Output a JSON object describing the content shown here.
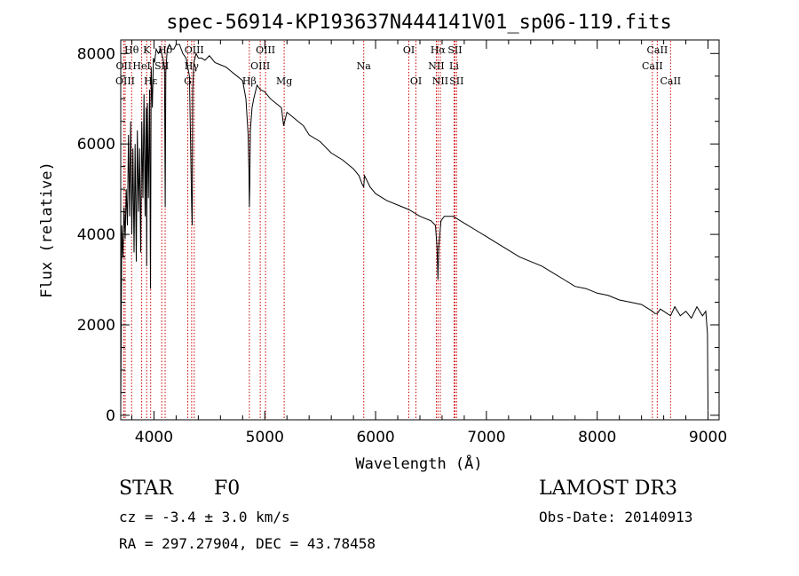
{
  "chart_data": {
    "type": "line",
    "title": "spec-56914-KP193637N444141V01_sp06-119.fits",
    "xlabel": "Wavelength (Å)",
    "ylabel": "Flux (relative)",
    "xlim": [
      3700,
      9100
    ],
    "ylim": [
      -100,
      8300
    ],
    "xticks": [
      4000,
      5000,
      6000,
      7000,
      8000,
      9000
    ],
    "yticks": [
      0,
      2000,
      4000,
      6000,
      8000
    ],
    "series": [
      {
        "name": "flux",
        "x": [
          3700,
          3710,
          3720,
          3730,
          3740,
          3750,
          3760,
          3770,
          3780,
          3790,
          3800,
          3810,
          3820,
          3830,
          3840,
          3850,
          3860,
          3870,
          3880,
          3890,
          3900,
          3910,
          3920,
          3930,
          3934,
          3940,
          3950,
          3960,
          3968,
          3975,
          3985,
          3995,
          4005,
          4020,
          4040,
          4060,
          4080,
          4095,
          4101,
          4107,
          4120,
          4140,
          4160,
          4180,
          4200,
          4230,
          4260,
          4290,
          4320,
          4340,
          4345,
          4350,
          4360,
          4380,
          4400,
          4430,
          4460,
          4500,
          4550,
          4600,
          4650,
          4700,
          4750,
          4800,
          4830,
          4850,
          4858,
          4861,
          4864,
          4870,
          4885,
          4900,
          4930,
          4960,
          5000,
          5050,
          5100,
          5150,
          5170,
          5180,
          5200,
          5250,
          5300,
          5350,
          5400,
          5500,
          5600,
          5700,
          5800,
          5850,
          5880,
          5893,
          5900,
          5950,
          6000,
          6100,
          6200,
          6300,
          6400,
          6500,
          6540,
          6555,
          6563,
          6570,
          6590,
          6620,
          6700,
          6800,
          6900,
          7000,
          7100,
          7200,
          7300,
          7400,
          7500,
          7600,
          7700,
          7800,
          7900,
          8000,
          8100,
          8200,
          8300,
          8400,
          8498,
          8520,
          8542,
          8570,
          8600,
          8662,
          8700,
          8750,
          8800,
          8850,
          8900,
          8950,
          8980,
          8995,
          9000
        ],
        "y": [
          100,
          4200,
          3500,
          4600,
          3900,
          5000,
          4200,
          6200,
          4400,
          6500,
          4000,
          5900,
          3600,
          6000,
          3400,
          6300,
          4500,
          5900,
          3600,
          6500,
          4800,
          7100,
          4400,
          6800,
          3300,
          6900,
          4800,
          7200,
          2800,
          7700,
          6800,
          7900,
          7800,
          8100,
          8000,
          8100,
          7900,
          7700,
          4600,
          7600,
          8100,
          8200,
          8100,
          8100,
          8200,
          8200,
          8000,
          7900,
          7500,
          4600,
          4200,
          7200,
          7800,
          8000,
          7900,
          7900,
          7850,
          7950,
          7800,
          7750,
          7700,
          7600,
          7500,
          7400,
          7000,
          6200,
          5300,
          4600,
          5000,
          6300,
          6800,
          7000,
          7300,
          7200,
          7150,
          7000,
          6900,
          6800,
          6400,
          6500,
          6700,
          6600,
          6500,
          6400,
          6200,
          6050,
          5800,
          5650,
          5450,
          5300,
          5100,
          5050,
          5300,
          5050,
          4900,
          4750,
          4650,
          4550,
          4400,
          4300,
          4200,
          3700,
          3000,
          3700,
          4300,
          4400,
          4400,
          4250,
          4100,
          3950,
          3800,
          3650,
          3500,
          3400,
          3300,
          3150,
          3000,
          2850,
          2800,
          2700,
          2650,
          2550,
          2500,
          2450,
          2300,
          2250,
          2250,
          2350,
          2300,
          2200,
          2400,
          2200,
          2300,
          2150,
          2400,
          2200,
          2300,
          1800,
          100
        ]
      }
    ],
    "lines": [
      {
        "label": "Hθ",
        "x": 3798,
        "row": 1
      },
      {
        "label": "OII",
        "x": 3727,
        "row": 2
      },
      {
        "label": "OIII",
        "x": 3740,
        "row": 3
      },
      {
        "label": "K",
        "x": 3934,
        "row": 1
      },
      {
        "label": "HeI",
        "x": 3889,
        "row": 2
      },
      {
        "label": "Hε",
        "x": 3970,
        "row": 3
      },
      {
        "label": "Hδ",
        "x": 4101,
        "row": 1
      },
      {
        "label": "SII",
        "x": 4070,
        "row": 2
      },
      {
        "label": "OIII",
        "x": 4363,
        "row": 1
      },
      {
        "label": "Hγ",
        "x": 4340,
        "row": 2
      },
      {
        "label": "G",
        "x": 4305,
        "row": 3
      },
      {
        "label": "OIII",
        "x": 5007,
        "row": 1
      },
      {
        "label": "OIII",
        "x": 4959,
        "row": 2
      },
      {
        "label": "Hβ",
        "x": 4861,
        "row": 3
      },
      {
        "label": "Mg",
        "x": 5175,
        "row": 3
      },
      {
        "label": "Na",
        "x": 5893,
        "row": 2
      },
      {
        "label": "OI",
        "x": 6300,
        "row": 1
      },
      {
        "label": "OI",
        "x": 6364,
        "row": 3
      },
      {
        "label": "Hα",
        "x": 6563,
        "row": 1
      },
      {
        "label": "SII",
        "x": 6716,
        "row": 1
      },
      {
        "label": "NII",
        "x": 6548,
        "row": 2
      },
      {
        "label": "Li",
        "x": 6708,
        "row": 2
      },
      {
        "label": "NII",
        "x": 6584,
        "row": 3
      },
      {
        "label": "SII",
        "x": 6731,
        "row": 3
      },
      {
        "label": "CaII",
        "x": 8542,
        "row": 1
      },
      {
        "label": "CaII",
        "x": 8498,
        "row": 2
      },
      {
        "label": "CaII",
        "x": 8662,
        "row": 3
      }
    ]
  },
  "info": {
    "object_class": "STAR",
    "subclass": "F0",
    "survey": "LAMOST DR3",
    "redshift": "cz = -3.4 ± 3.0 km/s",
    "obs_date": "Obs-Date: 20140913",
    "coords": "RA = 297.27904, DEC =  43.78458"
  },
  "colors": {
    "spectrum": "#000000",
    "line_marker": "#cc0000",
    "axis": "#000000"
  }
}
